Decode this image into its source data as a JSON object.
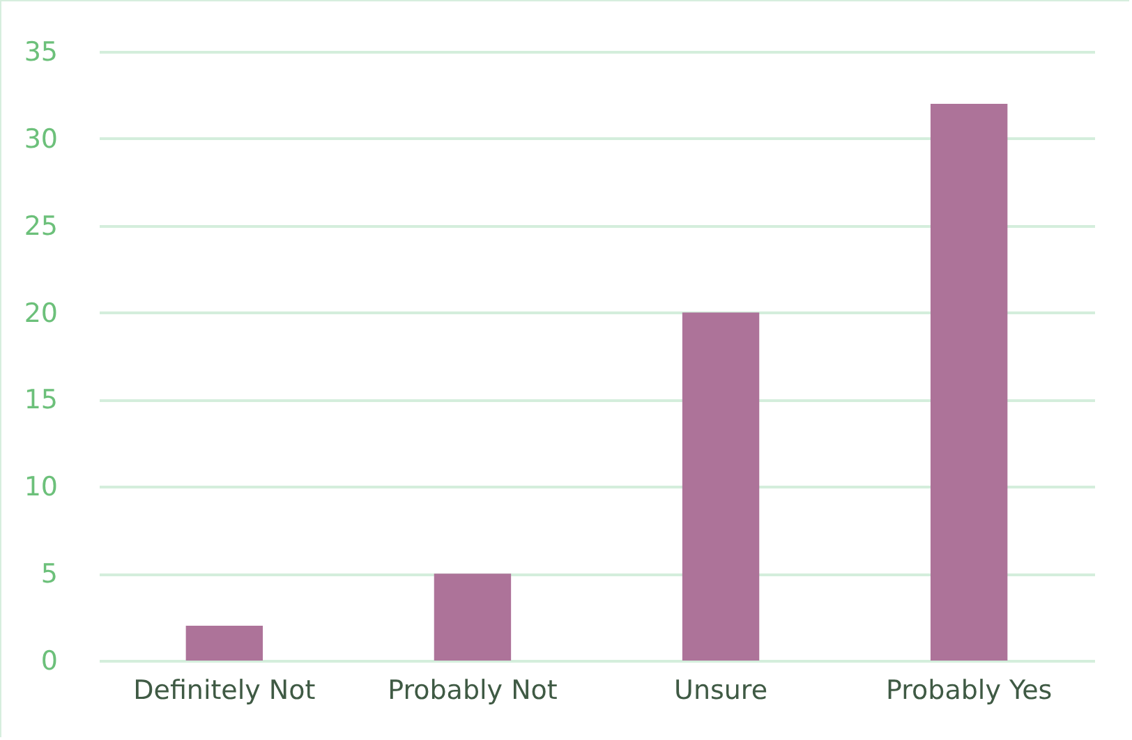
{
  "chart_data": {
    "type": "bar",
    "categories": [
      "Definitely Not",
      "Probably Not",
      "Unsure",
      "Probably Yes"
    ],
    "values": [
      2,
      5,
      20,
      32
    ],
    "color": "#ad7399",
    "ylim": [
      0,
      35
    ],
    "yticks": [
      0,
      5,
      10,
      15,
      20,
      25,
      30,
      35
    ],
    "grid": "y"
  }
}
